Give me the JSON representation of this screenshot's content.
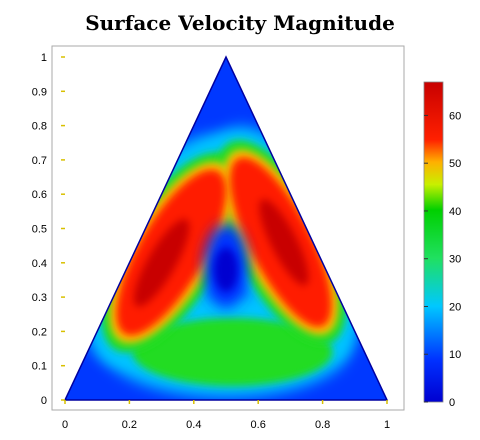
{
  "chart_data": {
    "type": "heatmap",
    "title": "Surface Velocity Magnitude",
    "xlabel": "",
    "ylabel": "",
    "xlim": [
      0,
      1
    ],
    "ylim": [
      0,
      1
    ],
    "x_ticks": [
      "0",
      "0.2",
      "0.4",
      "0.6",
      "0.8",
      "1"
    ],
    "y_ticks": [
      "0",
      "0.1",
      "0.2",
      "0.3",
      "0.4",
      "0.5",
      "0.6",
      "0.7",
      "0.8",
      "0.9",
      "1"
    ],
    "domain": {
      "shape": "triangle",
      "vertices": [
        [
          0,
          0
        ],
        [
          1,
          0
        ],
        [
          0.5,
          1
        ]
      ]
    },
    "colorbar": {
      "range": [
        0,
        67
      ],
      "ticks": [
        "0",
        "10",
        "20",
        "30",
        "40",
        "50",
        "60"
      ],
      "colormap": "jet"
    },
    "field_features": [
      {
        "region": "left lobe",
        "center": [
          0.32,
          0.42
        ],
        "value": 64
      },
      {
        "region": "right lobe",
        "center": [
          0.67,
          0.46
        ],
        "value": 63
      },
      {
        "region": "central low",
        "center": [
          0.5,
          0.38
        ],
        "value": 3
      },
      {
        "region": "bottom band",
        "center": [
          0.5,
          0.13
        ],
        "value": 35
      },
      {
        "region": "corners and edges",
        "value": 0
      }
    ]
  }
}
